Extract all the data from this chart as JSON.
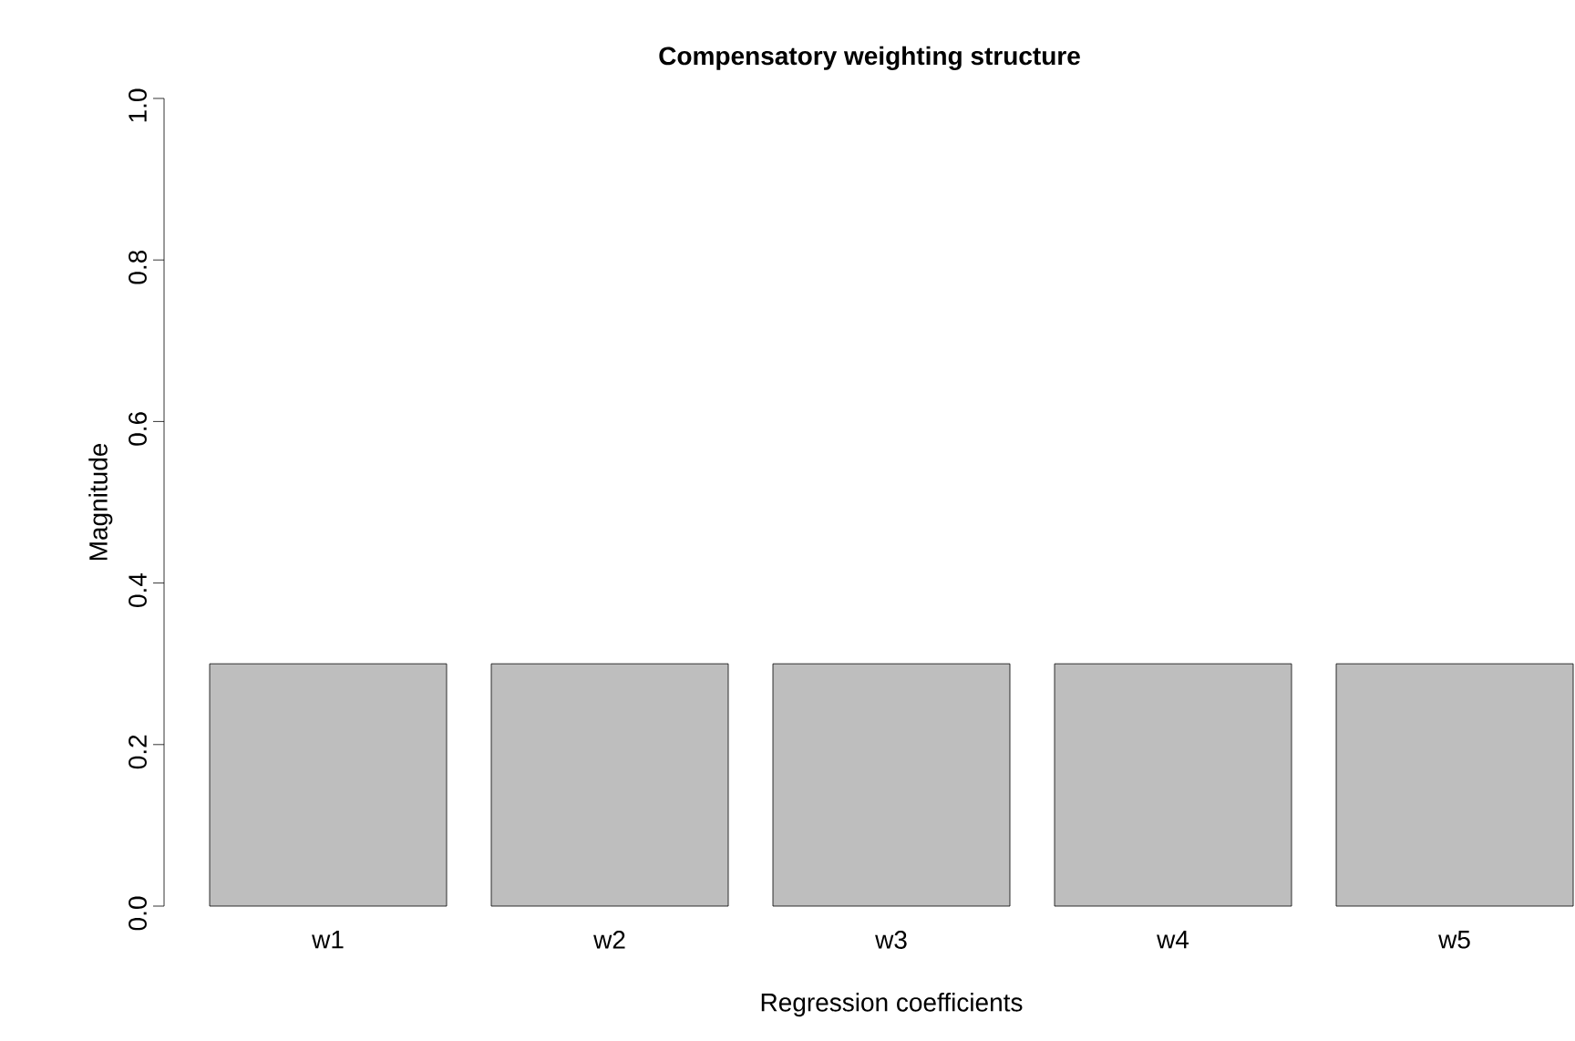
{
  "chart_data": {
    "type": "bar",
    "title": "Compensatory weighting structure",
    "xlabel": "Regression coefficients",
    "ylabel": "Magnitude",
    "categories": [
      "w1",
      "w2",
      "w3",
      "w4",
      "w5"
    ],
    "values": [
      0.3,
      0.3,
      0.3,
      0.3,
      0.3
    ],
    "color": "#bebebe",
    "ylim": [
      0,
      1
    ],
    "yticks": [
      {
        "value": 0,
        "label": "0.0"
      },
      0.2,
      0.4,
      0.6,
      0.8,
      {
        "value": 1,
        "label": "1.0"
      }
    ]
  }
}
